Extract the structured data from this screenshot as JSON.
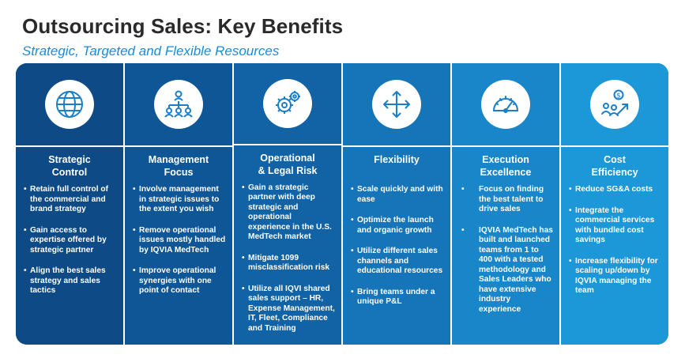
{
  "header": {
    "title": "Outsourcing Sales: Key Benefits",
    "subtitle": "Strategic, Targeted and Flexible Resources"
  },
  "colors": {
    "accent": "#1a8bd6",
    "col_shades": [
      "#0d4a86",
      "#0f5696",
      "#1163a6",
      "#1674b8",
      "#1886c8",
      "#1c97d8"
    ]
  },
  "columns": [
    {
      "icon": "globe-icon",
      "heading": [
        "Strategic",
        "Control"
      ],
      "bullets": [
        "Retain full control of the commercial and brand strategy",
        "Gain access to expertise offered by strategic partner",
        "Align the best sales strategy and sales tactics"
      ]
    },
    {
      "icon": "org-chart-icon",
      "heading": [
        "Management",
        "Focus"
      ],
      "bullets": [
        "Involve management in strategic issues to the extent you wish",
        "Remove operational issues mostly handled by IQVIA MedTech",
        "Improve operational synergies with one point of contact"
      ]
    },
    {
      "icon": "gears-icon",
      "heading": [
        "Operational",
        "& Legal Risk"
      ],
      "bullets": [
        "Gain a strategic partner with deep strategic and operational experience in the U.S. MedTech market",
        "Mitigate 1099 misclassification risk",
        "Utilize all IQVI shared sales support – HR, Expense Management, IT, Fleet, Compliance and Training"
      ]
    },
    {
      "icon": "move-arrows-icon",
      "heading": [
        "Flexibility",
        ""
      ],
      "bullets": [
        "Scale quickly and with ease",
        "Optimize the launch and organic growth",
        "Utilize different sales channels and educational resources",
        "Bring teams under a unique P&L"
      ]
    },
    {
      "icon": "gauge-icon",
      "heading": [
        "Execution",
        "Excellence"
      ],
      "bullets": [
        "Focus on finding the best talent to drive sales",
        "IQVIA MedTech has built and launched teams from 1 to 400 with a tested methodology and Sales Leaders who have extensive industry experience"
      ]
    },
    {
      "icon": "cost-people-icon",
      "heading": [
        "Cost",
        "Efficiency"
      ],
      "bullets": [
        "Reduce SG&A costs",
        "Integrate the commercial services with bundled cost savings",
        "Increase flexibility for scaling up/down by IQVIA managing the team"
      ]
    }
  ]
}
